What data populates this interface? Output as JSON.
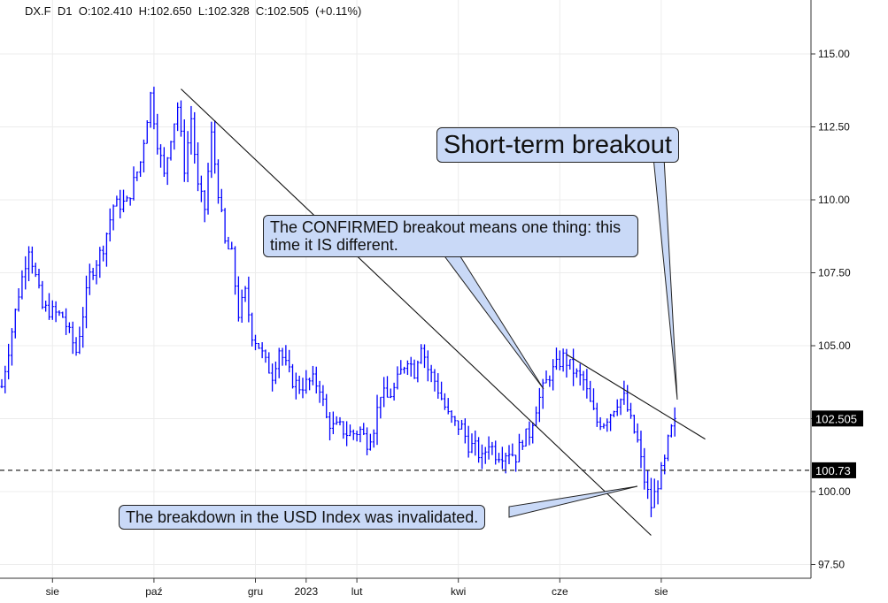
{
  "header": {
    "symbol": "DX.F",
    "timeframe": "D1",
    "ohlc_text": "O:102.410  H:102.650  L:102.328  C:102.505  (+0.11%)"
  },
  "chart_data": {
    "type": "bar",
    "instrument": "DX.F",
    "timeframe": "D1",
    "y_ticks": [
      "97.50",
      "100.00",
      "102.50",
      "105.00",
      "107.50",
      "110.00",
      "112.50",
      "115.00"
    ],
    "ylim": [
      97.0,
      116.5
    ],
    "x_ticks": [
      "sie",
      "paź",
      "gru",
      "2023",
      "lut",
      "kwi",
      "cze",
      "sie"
    ],
    "x_tick_index": [
      15,
      45,
      75,
      90,
      105,
      135,
      165,
      195
    ],
    "n_bars": 200,
    "last_price": "102.505",
    "level_label": "100.73",
    "level_value": 100.73,
    "price_color": "#0000ff",
    "close_path": [
      [
        0,
        103.6
      ],
      [
        5,
        106.8
      ],
      [
        8,
        108.4
      ],
      [
        12,
        106.3
      ],
      [
        18,
        106.0
      ],
      [
        22,
        104.8
      ],
      [
        26,
        107.4
      ],
      [
        30,
        108.4
      ],
      [
        33,
        109.8
      ],
      [
        37,
        109.9
      ],
      [
        41,
        111.3
      ],
      [
        44,
        113.6
      ],
      [
        46,
        112.0
      ],
      [
        48,
        110.8
      ],
      [
        50,
        112.2
      ],
      [
        52,
        113.2
      ],
      [
        54,
        111.1
      ],
      [
        56,
        112.8
      ],
      [
        58,
        110.4
      ],
      [
        60,
        109.7
      ],
      [
        62,
        112.2
      ],
      [
        64,
        110.3
      ],
      [
        66,
        108.5
      ],
      [
        68,
        108.1
      ],
      [
        70,
        106.1
      ],
      [
        72,
        106.8
      ],
      [
        74,
        105.4
      ],
      [
        76,
        105.0
      ],
      [
        78,
        104.4
      ],
      [
        80,
        104.0
      ],
      [
        82,
        104.9
      ],
      [
        84,
        104.3
      ],
      [
        86,
        103.8
      ],
      [
        88,
        103.6
      ],
      [
        90,
        103.7
      ],
      [
        92,
        103.8
      ],
      [
        94,
        103.6
      ],
      [
        96,
        102.5
      ],
      [
        98,
        102.2
      ],
      [
        100,
        102.2
      ],
      [
        102,
        102.0
      ],
      [
        104,
        102.0
      ],
      [
        106,
        102.1
      ],
      [
        108,
        101.7
      ],
      [
        110,
        102.2
      ],
      [
        112,
        103.4
      ],
      [
        114,
        103.2
      ],
      [
        116,
        103.5
      ],
      [
        118,
        104.1
      ],
      [
        120,
        104.6
      ],
      [
        122,
        104.1
      ],
      [
        124,
        105.1
      ],
      [
        126,
        104.2
      ],
      [
        128,
        103.8
      ],
      [
        130,
        103.2
      ],
      [
        132,
        102.6
      ],
      [
        134,
        102.3
      ],
      [
        136,
        102.2
      ],
      [
        138,
        101.6
      ],
      [
        140,
        101.5
      ],
      [
        142,
        101.1
      ],
      [
        144,
        101.7
      ],
      [
        146,
        101.3
      ],
      [
        148,
        101.3
      ],
      [
        150,
        101.4
      ],
      [
        152,
        101.2
      ],
      [
        154,
        101.8
      ],
      [
        156,
        102.0
      ],
      [
        158,
        102.9
      ],
      [
        160,
        103.5
      ],
      [
        162,
        104.0
      ],
      [
        164,
        104.3
      ],
      [
        166,
        104.6
      ],
      [
        168,
        104.3
      ],
      [
        170,
        104.0
      ],
      [
        172,
        103.8
      ],
      [
        174,
        103.0
      ],
      [
        176,
        102.4
      ],
      [
        178,
        102.4
      ],
      [
        180,
        102.7
      ],
      [
        182,
        103.1
      ],
      [
        184,
        103.2
      ],
      [
        186,
        102.4
      ],
      [
        188,
        101.7
      ],
      [
        190,
        100.4
      ],
      [
        192,
        99.5
      ],
      [
        194,
        100.3
      ],
      [
        196,
        101.0
      ],
      [
        197,
        101.7
      ],
      [
        198,
        102.1
      ],
      [
        199,
        102.505
      ]
    ],
    "trendlines": [
      {
        "name": "long-term-resistance",
        "from": [
          53,
          113.8
        ],
        "to": [
          192,
          98.5
        ]
      },
      {
        "name": "short-term-resistance",
        "from": [
          167,
          104.7
        ],
        "to": [
          208,
          101.8
        ]
      }
    ],
    "annotations": [
      {
        "text": "Short-term breakout"
      },
      {
        "text": "The CONFIRMED breakout means one thing: this time it IS different."
      },
      {
        "text": "The breakdown in the USD Index was invalidated."
      }
    ]
  }
}
